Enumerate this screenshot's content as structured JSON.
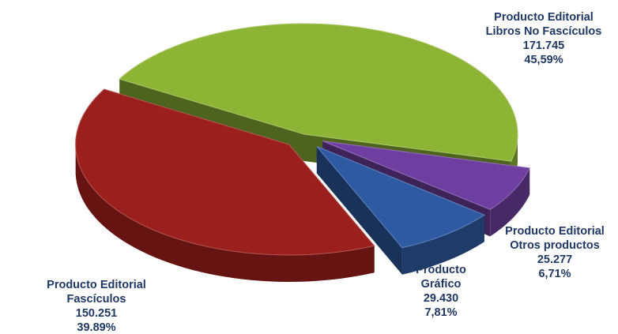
{
  "chart_data": {
    "type": "pie",
    "title": "",
    "legend": "none",
    "slices": [
      {
        "category": "Producto Editorial Libros No Fascículos",
        "lines": [
          "Producto Editorial",
          "Libros No Fascículos"
        ],
        "value": 171745,
        "value_text": "171.745",
        "percent": 45.59,
        "percent_text": "45,59%",
        "color": "#8db434",
        "exploded": false
      },
      {
        "category": "Producto Editorial Otros productos",
        "lines": [
          "Producto Editorial",
          "Otros productos"
        ],
        "value": 25277,
        "value_text": "25.277",
        "percent": 6.71,
        "percent_text": "6,71%",
        "color": "#6e3fa0",
        "exploded": true
      },
      {
        "category": "Producto Gráfico",
        "lines": [
          "Producto",
          "Gráfico"
        ],
        "value": 29430,
        "value_text": "29.430",
        "percent": 7.81,
        "percent_text": "7,81%",
        "color": "#2e5aa3",
        "exploded": true
      },
      {
        "category": "Producto Editorial Fascículos",
        "lines": [
          "Producto Editorial",
          "Fascículos"
        ],
        "value": 150251,
        "value_text": "150.251",
        "percent": 39.89,
        "percent_text": "39.89%",
        "color": "#9b1f1c",
        "exploded": true
      }
    ]
  }
}
